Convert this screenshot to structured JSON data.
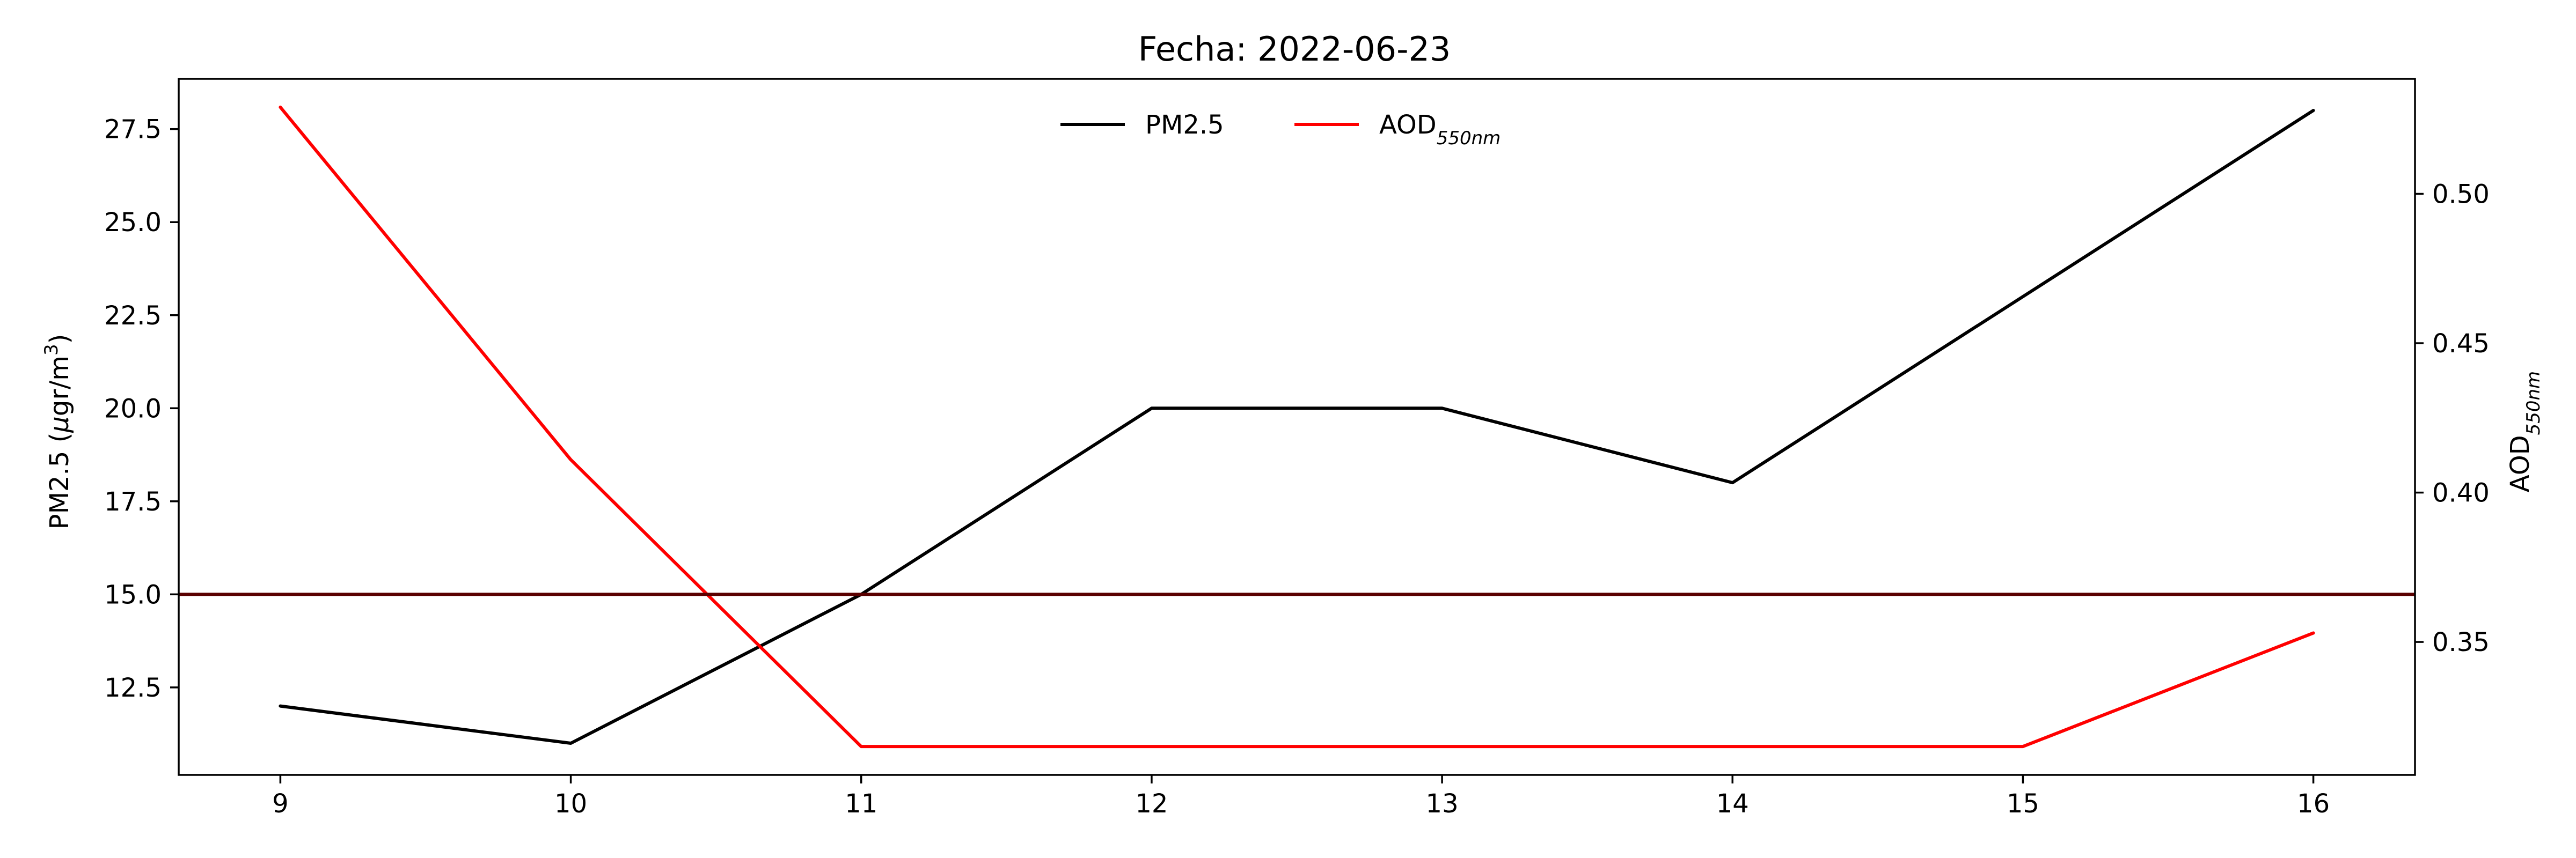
{
  "chart_data": {
    "type": "line",
    "title": "Fecha: 2022-06-23",
    "x": [
      9,
      10,
      11,
      12,
      13,
      14,
      15,
      16
    ],
    "xlim": [
      8.65,
      16.35
    ],
    "x_ticks": [
      "9",
      "10",
      "11",
      "12",
      "13",
      "14",
      "15",
      "16"
    ],
    "left_axis": {
      "label_main": "PM2.5 (",
      "label_mu": "μ",
      "label_unit": "gr/m",
      "label_sup": "3",
      "label_close": ")",
      "ylim": [
        10.15,
        28.85
      ],
      "ticks": [
        12.5,
        15.0,
        17.5,
        20.0,
        22.5,
        25.0,
        27.5
      ],
      "tick_labels": [
        "12.5",
        "15.0",
        "17.5",
        "20.0",
        "22.5",
        "25.0",
        "27.5"
      ]
    },
    "right_axis": {
      "label_main": "AOD",
      "label_sub": "550nm",
      "ylim": [
        0.3055,
        0.5385
      ],
      "ticks": [
        0.35,
        0.4,
        0.45,
        0.5
      ],
      "tick_labels": [
        "0.35",
        "0.40",
        "0.45",
        "0.50"
      ]
    },
    "series": [
      {
        "name": "PM2.5",
        "axis": "left",
        "color": "#000000",
        "values": [
          12,
          11,
          15,
          20,
          20,
          18,
          23,
          28
        ]
      },
      {
        "name_main": "AOD",
        "name_sub": "550nm",
        "axis": "right",
        "color": "#ff0000",
        "values": [
          0.529,
          0.411,
          0.315,
          0.315,
          0.315,
          0.315,
          0.315,
          0.353
        ]
      }
    ],
    "reference_line": {
      "axis": "left",
      "value": 15.0,
      "color": "#5a0000"
    },
    "legend_position": "upper center",
    "grid": false
  }
}
